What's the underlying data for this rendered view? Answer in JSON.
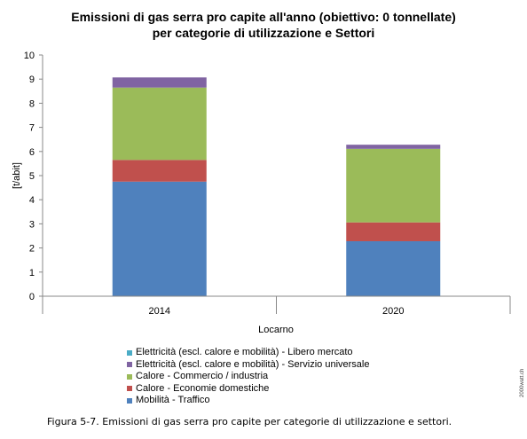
{
  "chart_data": {
    "type": "bar",
    "stacked": true,
    "title_line1": "Emissioni di gas serra pro capite all'anno (obiettivo: 0 tonnellate)",
    "title_line2": "per categorie di utilizzazione e Settori",
    "ylabel": "[t/abit]",
    "xlabel": "Locarno",
    "ylim": [
      0,
      10
    ],
    "yticks": [
      "0",
      "1",
      "2",
      "3",
      "4",
      "5",
      "6",
      "7",
      "8",
      "9",
      "10"
    ],
    "grid": false,
    "legend_position": "bottom",
    "categories": [
      "2014",
      "2020"
    ],
    "series": [
      {
        "name": "Mobilità - Traffico",
        "color": "#4f81bd",
        "values": [
          4.75,
          2.28
        ]
      },
      {
        "name": "Calore - Economie domestiche",
        "color": "#c0504d",
        "values": [
          0.9,
          0.78
        ]
      },
      {
        "name": "Calore - Commercio / industria",
        "color": "#9bbb59",
        "values": [
          3.0,
          3.05
        ]
      },
      {
        "name": "Elettricità (escl. calore e mobilità) - Servizio universale",
        "color": "#8064a2",
        "values": [
          0.42,
          0.17
        ]
      },
      {
        "name": "Elettricità (escl. calore e mobilità) - Libero mercato",
        "color": "#4bacc6",
        "values": [
          0.0,
          0.0
        ]
      }
    ]
  },
  "watermark": "2000watt.ch",
  "caption": "Figura 5-7. Emissioni di gas serra pro capite per categorie di utilizzazione e settori."
}
